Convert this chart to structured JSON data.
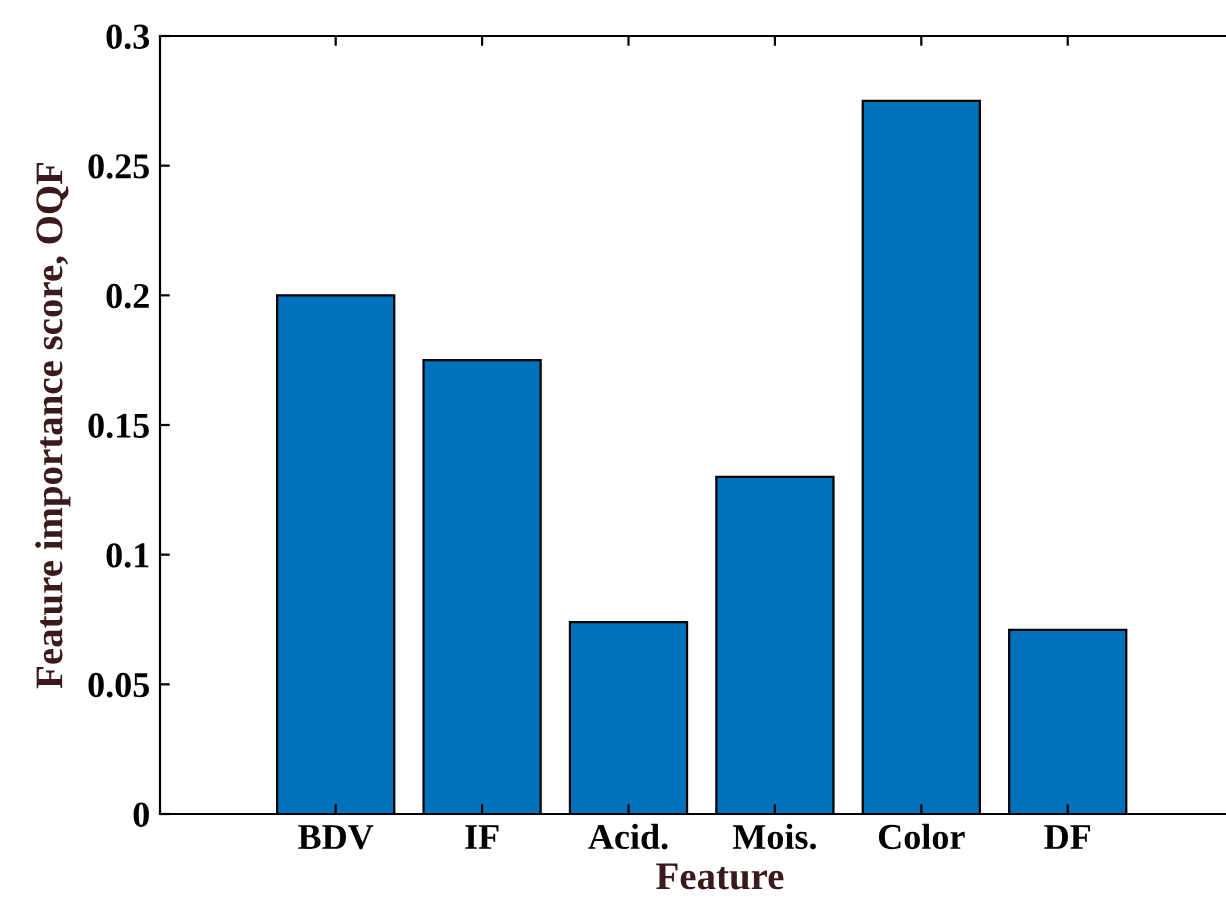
{
  "chart_data": {
    "type": "bar",
    "xlabel": "Feature",
    "ylabel": "Feature importance score, OQF",
    "categories": [
      "BDV",
      "IF",
      "Acid.",
      "Mois.",
      "Color",
      "DF"
    ],
    "values": [
      0.2,
      0.175,
      0.074,
      0.13,
      0.275,
      0.071
    ],
    "color": "#0072bd",
    "ylim": [
      0,
      0.3
    ],
    "yticks": [
      0,
      0.05,
      0.1,
      0.15,
      0.2,
      0.25,
      0.3
    ],
    "grid": false
  }
}
